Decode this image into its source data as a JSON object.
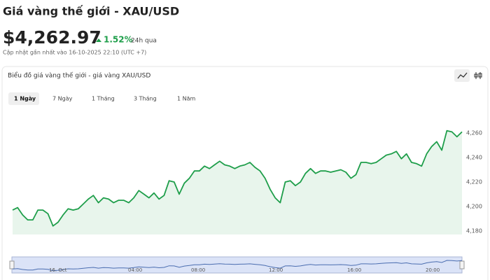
{
  "header": {
    "title": "Giá vàng thế giới - XAU/USD",
    "price": "$4,262.97",
    "change": "1.52%",
    "change_period": "24h qua",
    "updated": "Cập nhật gần nhất vào 16-10-2025 22:10 (UTC +7)"
  },
  "panel": {
    "title": "Biểu đồ giá vàng thế giới - giá vàng XAU/USD",
    "tabs": [
      "1 Ngày",
      "7 Ngày",
      "1 Tháng",
      "3 Tháng",
      "1 Năm"
    ],
    "navigator_labels": [
      "16. Oct",
      "04:00",
      "08:00",
      "12:00",
      "16:00",
      "20:00"
    ]
  },
  "chart_data": {
    "type": "line",
    "color": "#1e9e4a",
    "ylim": [
      4177,
      4283
    ],
    "yticks": [
      {
        "value": 4180,
        "label": "4,180"
      },
      {
        "value": 4200,
        "label": "4,200"
      },
      {
        "value": 4220,
        "label": "4,220"
      },
      {
        "value": 4240,
        "label": "4,240"
      },
      {
        "value": 4260,
        "label": "4,260"
      }
    ],
    "values": [
      4197,
      4199,
      4193,
      4189,
      4189,
      4197,
      4197,
      4194,
      4184,
      4187,
      4193,
      4198,
      4197,
      4198,
      4202,
      4206,
      4209,
      4203,
      4207,
      4206,
      4203,
      4205,
      4205,
      4203,
      4207,
      4213,
      4210,
      4207,
      4211,
      4206,
      4209,
      4221,
      4220,
      4210,
      4219,
      4223,
      4229,
      4229,
      4233,
      4231,
      4234,
      4237,
      4234,
      4233,
      4231,
      4233,
      4234,
      4236,
      4232,
      4229,
      4223,
      4214,
      4207,
      4203,
      4220,
      4221,
      4217,
      4220,
      4227,
      4231,
      4227,
      4229,
      4229,
      4228,
      4229,
      4230,
      4228,
      4223,
      4226,
      4236,
      4236,
      4235,
      4236,
      4239,
      4242,
      4243,
      4245,
      4239,
      4243,
      4236,
      4235,
      4233,
      4243,
      4249,
      4253,
      4246,
      4262,
      4261,
      4257,
      4261
    ]
  }
}
